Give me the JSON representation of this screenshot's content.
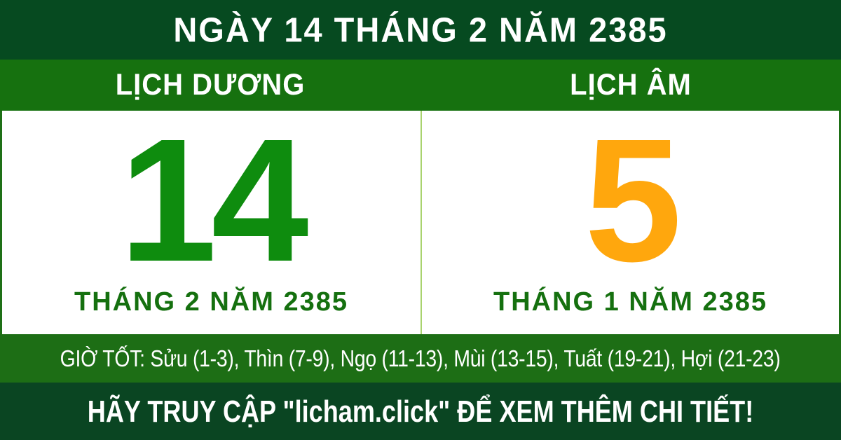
{
  "header": {
    "title": "NGÀY 14 THÁNG 2 NĂM 2385"
  },
  "calendar": {
    "solar": {
      "label": "LỊCH DƯƠNG",
      "day": "14",
      "month_year": "THÁNG 2 NĂM 2385"
    },
    "lunar": {
      "label": "LỊCH ÂM",
      "day": "5",
      "month_year": "THÁNG 1 NĂM 2385"
    }
  },
  "good_hours": {
    "label": "GIỜ TỐT:",
    "hours": "Sửu (1-3), Thìn (7-9), Ngọ (11-13), Mùi (13-15), Tuất (19-21), Hợi (21-23)"
  },
  "footer": {
    "text": "HÃY TRUY CẬP \"licham.click\" ĐỂ XEM THÊM CHI TIẾT!"
  },
  "colors": {
    "dark_green_header": "#064a20",
    "band_green": "#16710f",
    "good_hours_green": "#1d6e15",
    "footer_green": "#0a4522",
    "solar_day_green": "#0e8c0e",
    "lunar_day_orange": "#ffa70d",
    "month_text_green": "#15700f",
    "divider_light_green": "#a9d36e",
    "card_white": "#ffffff"
  }
}
